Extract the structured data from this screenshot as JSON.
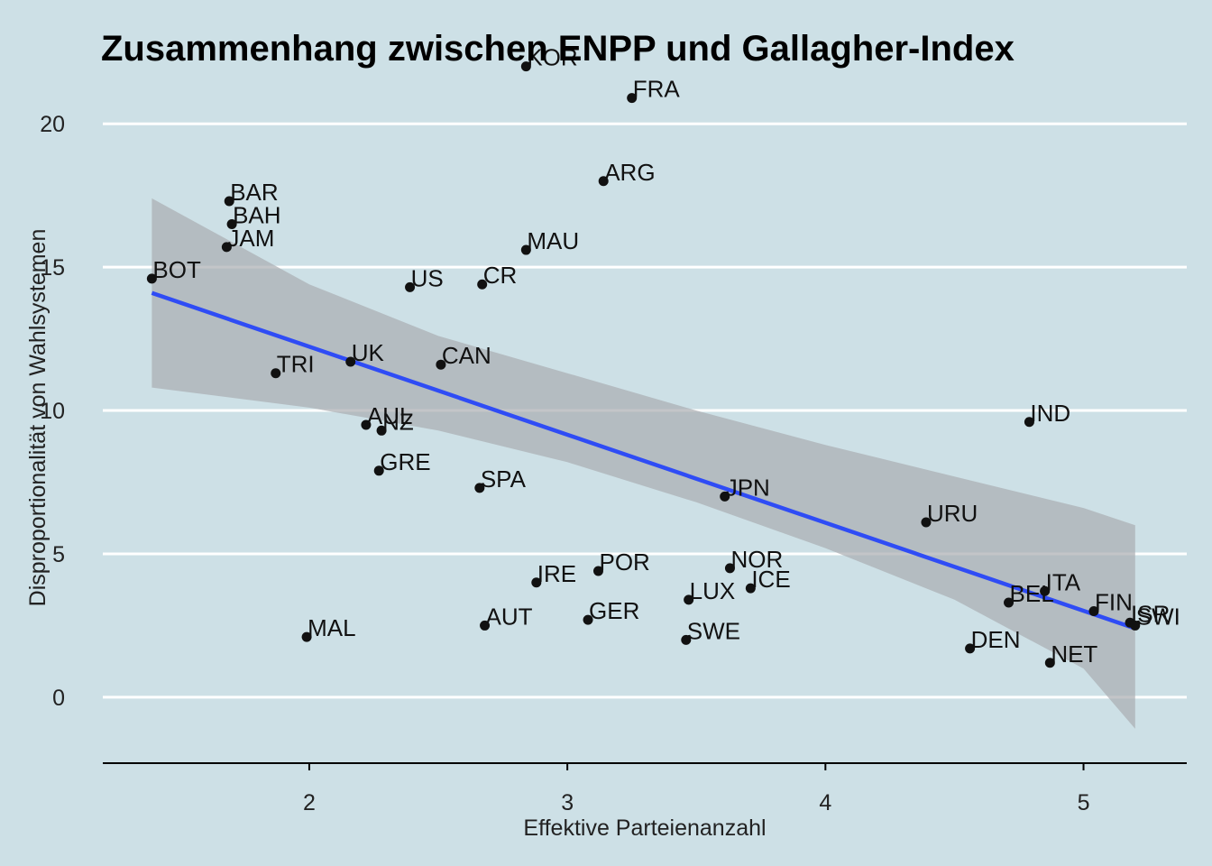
{
  "chart_data": {
    "type": "scatter",
    "title": "Zusammenhang zwischen ENPP und Gallagher-Index",
    "xlabel": "Effektive Parteienanzahl",
    "ylabel": "Disproportionalität von Wahlsystemen",
    "xlim": [
      1.2,
      5.4
    ],
    "ylim": [
      -2.3,
      21.8
    ],
    "x_ticks": [
      "2",
      "3",
      "4",
      "5"
    ],
    "x_tick_values": [
      2,
      3,
      4,
      5
    ],
    "y_ticks": [
      "0",
      "5",
      "10",
      "15",
      "20"
    ],
    "y_tick_values": [
      0,
      5,
      10,
      15,
      20
    ],
    "grid": "horizontal",
    "legend": "none",
    "points": [
      {
        "label": "KOR",
        "x": 2.84,
        "y": 22.0
      },
      {
        "label": "FRA",
        "x": 3.25,
        "y": 20.9
      },
      {
        "label": "ARG",
        "x": 3.14,
        "y": 18.0
      },
      {
        "label": "BAR",
        "x": 1.69,
        "y": 17.3
      },
      {
        "label": "BAH",
        "x": 1.7,
        "y": 16.5
      },
      {
        "label": "JAM",
        "x": 1.68,
        "y": 15.7
      },
      {
        "label": "MAU",
        "x": 2.84,
        "y": 15.6
      },
      {
        "label": "BOT",
        "x": 1.39,
        "y": 14.6
      },
      {
        "label": "US",
        "x": 2.39,
        "y": 14.3
      },
      {
        "label": "CR",
        "x": 2.67,
        "y": 14.4
      },
      {
        "label": "UK",
        "x": 2.16,
        "y": 11.7
      },
      {
        "label": "CAN",
        "x": 2.51,
        "y": 11.6
      },
      {
        "label": "TRI",
        "x": 1.87,
        "y": 11.3
      },
      {
        "label": "IND",
        "x": 4.79,
        "y": 9.6
      },
      {
        "label": "AUL",
        "x": 2.22,
        "y": 9.5
      },
      {
        "label": "NZ",
        "x": 2.28,
        "y": 9.3
      },
      {
        "label": "GRE",
        "x": 2.27,
        "y": 7.9
      },
      {
        "label": "SPA",
        "x": 2.66,
        "y": 7.3
      },
      {
        "label": "JPN",
        "x": 3.61,
        "y": 7.0
      },
      {
        "label": "URU",
        "x": 4.39,
        "y": 6.1
      },
      {
        "label": "NOR",
        "x": 3.63,
        "y": 4.5
      },
      {
        "label": "POR",
        "x": 3.12,
        "y": 4.4
      },
      {
        "label": "IRE",
        "x": 2.88,
        "y": 4.0
      },
      {
        "label": "ICE",
        "x": 3.71,
        "y": 3.8
      },
      {
        "label": "ITA",
        "x": 4.85,
        "y": 3.7
      },
      {
        "label": "LUX",
        "x": 3.47,
        "y": 3.4
      },
      {
        "label": "BEL",
        "x": 4.71,
        "y": 3.3
      },
      {
        "label": "FIN",
        "x": 5.04,
        "y": 3.0
      },
      {
        "label": "AUT",
        "x": 2.68,
        "y": 2.5
      },
      {
        "label": "GER",
        "x": 3.08,
        "y": 2.7
      },
      {
        "label": "SWE",
        "x": 3.46,
        "y": 2.0
      },
      {
        "label": "MAL",
        "x": 1.99,
        "y": 2.1
      },
      {
        "label": "ISR",
        "x": 5.18,
        "y": 2.6
      },
      {
        "label": "SWI",
        "x": 5.2,
        "y": 2.5
      },
      {
        "label": "DEN",
        "x": 4.56,
        "y": 1.7
      },
      {
        "label": "NET",
        "x": 4.87,
        "y": 1.2
      }
    ],
    "trend_line": {
      "x": [
        1.39,
        5.2
      ],
      "y": [
        14.1,
        2.4
      ]
    },
    "confidence_band": {
      "x": [
        1.39,
        2.0,
        2.5,
        3.0,
        3.5,
        4.0,
        4.5,
        5.0,
        5.2
      ],
      "upper": [
        17.4,
        14.4,
        12.6,
        11.3,
        10.0,
        8.8,
        7.7,
        6.6,
        6.0
      ],
      "lower": [
        10.8,
        10.1,
        9.3,
        8.2,
        6.8,
        5.2,
        3.4,
        1.0,
        -1.1
      ]
    },
    "colors": {
      "background": "#cde0e6",
      "trend_line": "#2f4cf5",
      "band": "#a9adb0",
      "point": "#111111",
      "grid": "#ffffff"
    }
  }
}
